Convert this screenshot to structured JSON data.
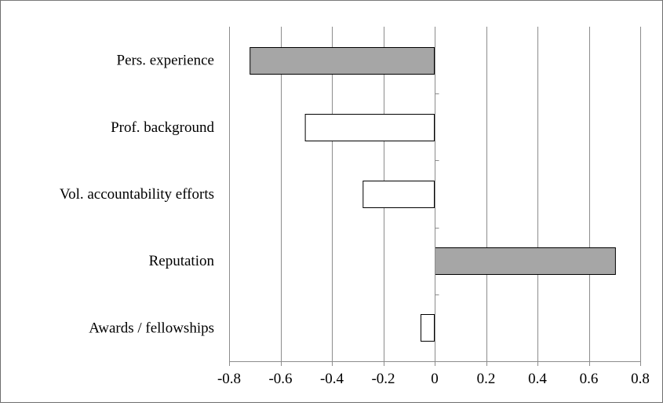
{
  "chart_data": {
    "type": "bar",
    "orientation": "horizontal",
    "categories": [
      "Pers. experience",
      "Prof. background",
      "Vol. accountability efforts",
      "Reputation",
      "Awards / fellowships"
    ],
    "values": [
      -0.72,
      -0.505,
      -0.28,
      0.705,
      -0.055
    ],
    "bar_fills": [
      "#a6a6a6",
      "#ffffff",
      "#ffffff",
      "#a6a6a6",
      "#ffffff"
    ],
    "bar_stroke": "#000000",
    "gridline_color": "#8c8c8c",
    "title": "",
    "xlabel": "",
    "ylabel": "",
    "xlim": [
      -0.8,
      0.8
    ],
    "x_ticks": [
      -0.8,
      -0.6,
      -0.4,
      -0.2,
      0,
      0.2,
      0.4,
      0.6,
      0.8
    ],
    "x_tick_labels": [
      "-0.8",
      "-0.6",
      "-0.4",
      "-0.2",
      "0",
      "0.2",
      "0.4",
      "0.6",
      "0.8"
    ],
    "grid": "vertical",
    "legend": "none"
  }
}
